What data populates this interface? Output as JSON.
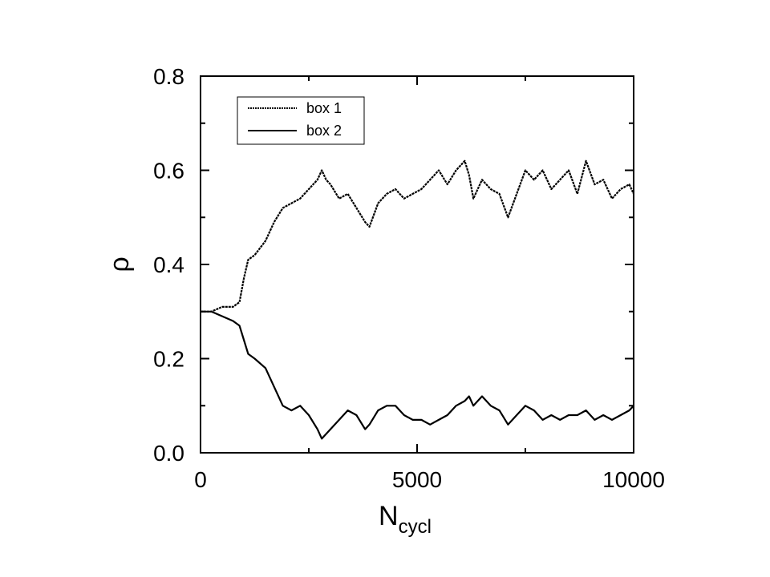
{
  "chart_data": {
    "type": "line",
    "xlabel": "N",
    "xlabel_sub": "cycl",
    "ylabel": "ρ",
    "xlim": [
      0,
      10000
    ],
    "ylim": [
      0.0,
      0.8
    ],
    "xticks": [
      0,
      5000,
      10000
    ],
    "xtick_labels": [
      "0",
      "5000",
      "10000"
    ],
    "yticks": [
      0.0,
      0.2,
      0.4,
      0.6,
      0.8
    ],
    "ytick_labels": [
      "0.0",
      "0.2",
      "0.4",
      "0.6",
      "0.8"
    ],
    "grid": false,
    "legend_position": "top-left",
    "series": [
      {
        "name": "box 1",
        "dash": "dotted",
        "x": [
          0,
          250,
          500,
          750,
          900,
          1000,
          1100,
          1250,
          1500,
          1700,
          1900,
          2100,
          2300,
          2500,
          2700,
          2800,
          2900,
          3000,
          3200,
          3400,
          3600,
          3800,
          3900,
          4100,
          4300,
          4500,
          4700,
          4900,
          5100,
          5300,
          5500,
          5700,
          5900,
          6100,
          6200,
          6300,
          6500,
          6700,
          6900,
          7100,
          7300,
          7500,
          7700,
          7900,
          8100,
          8300,
          8500,
          8700,
          8900,
          9100,
          9300,
          9500,
          9700,
          9900,
          10000
        ],
        "values": [
          0.3,
          0.3,
          0.31,
          0.31,
          0.32,
          0.37,
          0.41,
          0.42,
          0.45,
          0.49,
          0.52,
          0.53,
          0.54,
          0.56,
          0.58,
          0.6,
          0.58,
          0.57,
          0.54,
          0.55,
          0.52,
          0.49,
          0.48,
          0.53,
          0.55,
          0.56,
          0.54,
          0.55,
          0.56,
          0.58,
          0.6,
          0.57,
          0.6,
          0.62,
          0.59,
          0.54,
          0.58,
          0.56,
          0.55,
          0.5,
          0.55,
          0.6,
          0.58,
          0.6,
          0.56,
          0.58,
          0.6,
          0.55,
          0.62,
          0.57,
          0.58,
          0.54,
          0.56,
          0.57,
          0.55
        ]
      },
      {
        "name": "box 2",
        "dash": "solid",
        "x": [
          0,
          250,
          500,
          750,
          900,
          1000,
          1100,
          1250,
          1500,
          1700,
          1900,
          2100,
          2300,
          2500,
          2700,
          2800,
          2900,
          3000,
          3200,
          3400,
          3600,
          3800,
          3900,
          4100,
          4300,
          4500,
          4700,
          4900,
          5100,
          5300,
          5500,
          5700,
          5900,
          6100,
          6200,
          6300,
          6500,
          6700,
          6900,
          7100,
          7300,
          7500,
          7700,
          7900,
          8100,
          8300,
          8500,
          8700,
          8900,
          9100,
          9300,
          9500,
          9700,
          9900,
          10000
        ],
        "values": [
          0.3,
          0.3,
          0.29,
          0.28,
          0.27,
          0.24,
          0.21,
          0.2,
          0.18,
          0.14,
          0.1,
          0.09,
          0.1,
          0.08,
          0.05,
          0.03,
          0.04,
          0.05,
          0.07,
          0.09,
          0.08,
          0.05,
          0.06,
          0.09,
          0.1,
          0.1,
          0.08,
          0.07,
          0.07,
          0.06,
          0.07,
          0.08,
          0.1,
          0.11,
          0.12,
          0.1,
          0.12,
          0.1,
          0.09,
          0.06,
          0.08,
          0.1,
          0.09,
          0.07,
          0.08,
          0.07,
          0.08,
          0.08,
          0.09,
          0.07,
          0.08,
          0.07,
          0.08,
          0.09,
          0.1
        ]
      }
    ]
  }
}
